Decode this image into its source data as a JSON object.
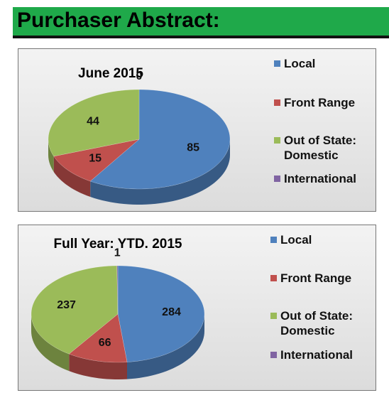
{
  "header": {
    "title": "Purchaser Abstract:"
  },
  "chart_data": [
    {
      "type": "pie",
      "title": "June 2015",
      "categories": [
        "Local",
        "Front Range",
        "Out of State: Domestic",
        "International"
      ],
      "values": [
        85,
        15,
        44,
        0
      ],
      "colors": [
        "#4f81bd",
        "#c0504d",
        "#9bbb59",
        "#8064a2"
      ]
    },
    {
      "type": "pie",
      "title": "Full Year: YTD. 2015",
      "categories": [
        "Local",
        "Front Range",
        "Out of State: Domestic",
        "International"
      ],
      "values": [
        284,
        66,
        237,
        1
      ],
      "colors": [
        "#4f81bd",
        "#c0504d",
        "#9bbb59",
        "#8064a2"
      ]
    }
  ]
}
